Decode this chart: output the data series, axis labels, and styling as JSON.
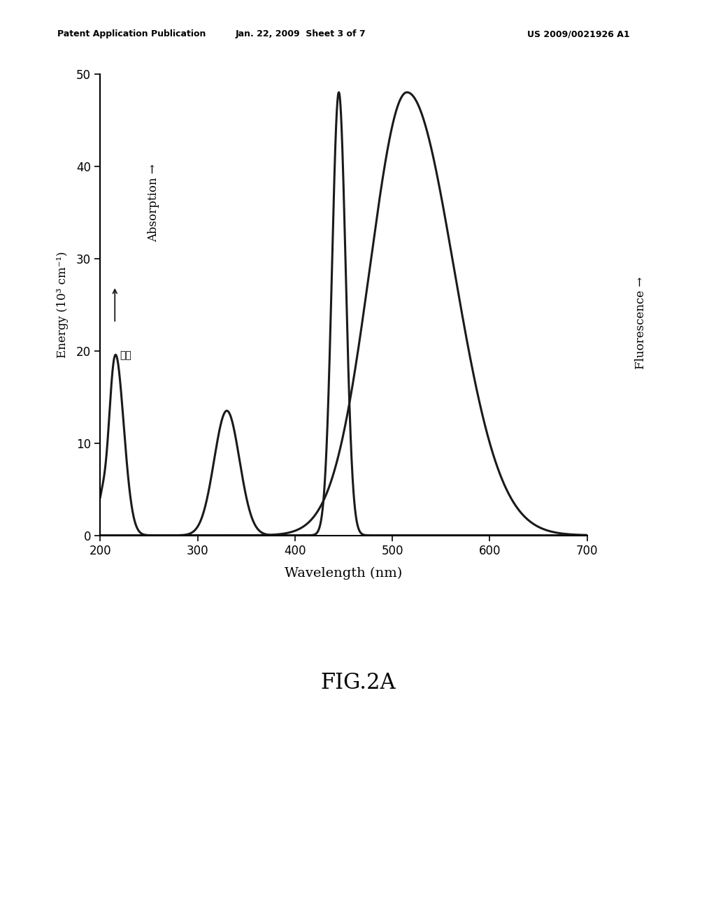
{
  "header_left": "Patent Application Publication",
  "header_center": "Jan. 22, 2009  Sheet 3 of 7",
  "header_right": "US 2009/0021926 A1",
  "xlabel": "Wavelength (nm)",
  "ylabel": "Energy (10³ cm⁻¹)",
  "right_label": "Fluorescence →",
  "top_label": "Absorption →",
  "chinese_label": "吸收",
  "xmin": 200,
  "xmax": 700,
  "ymin": 0,
  "ymax": 50,
  "xticks": [
    200,
    300,
    400,
    500,
    600,
    700
  ],
  "yticks": [
    0,
    10,
    20,
    30,
    40,
    50
  ],
  "fig_title": "FIG.2A",
  "background_color": "#ffffff",
  "line_color": "#1a1a1a",
  "line_width": 2.2,
  "abs_peak1_mu": 215,
  "abs_peak1_sigma": 7,
  "abs_peak1_amp": 20,
  "abs_peak1b_mu": 208,
  "abs_peak1b_sigma": 4,
  "abs_peak1b_amp": -4,
  "abs_peak2_mu": 330,
  "abs_peak2_sigma": 13,
  "abs_peak2_amp": 13.5,
  "abs_peak3_mu": 445,
  "abs_peak3_sigma": 7,
  "abs_peak3_amp": 48,
  "fluor_mu": 515,
  "fluor_sigma": 40,
  "fluor_amp": 48,
  "fluor_skew": 0.5
}
